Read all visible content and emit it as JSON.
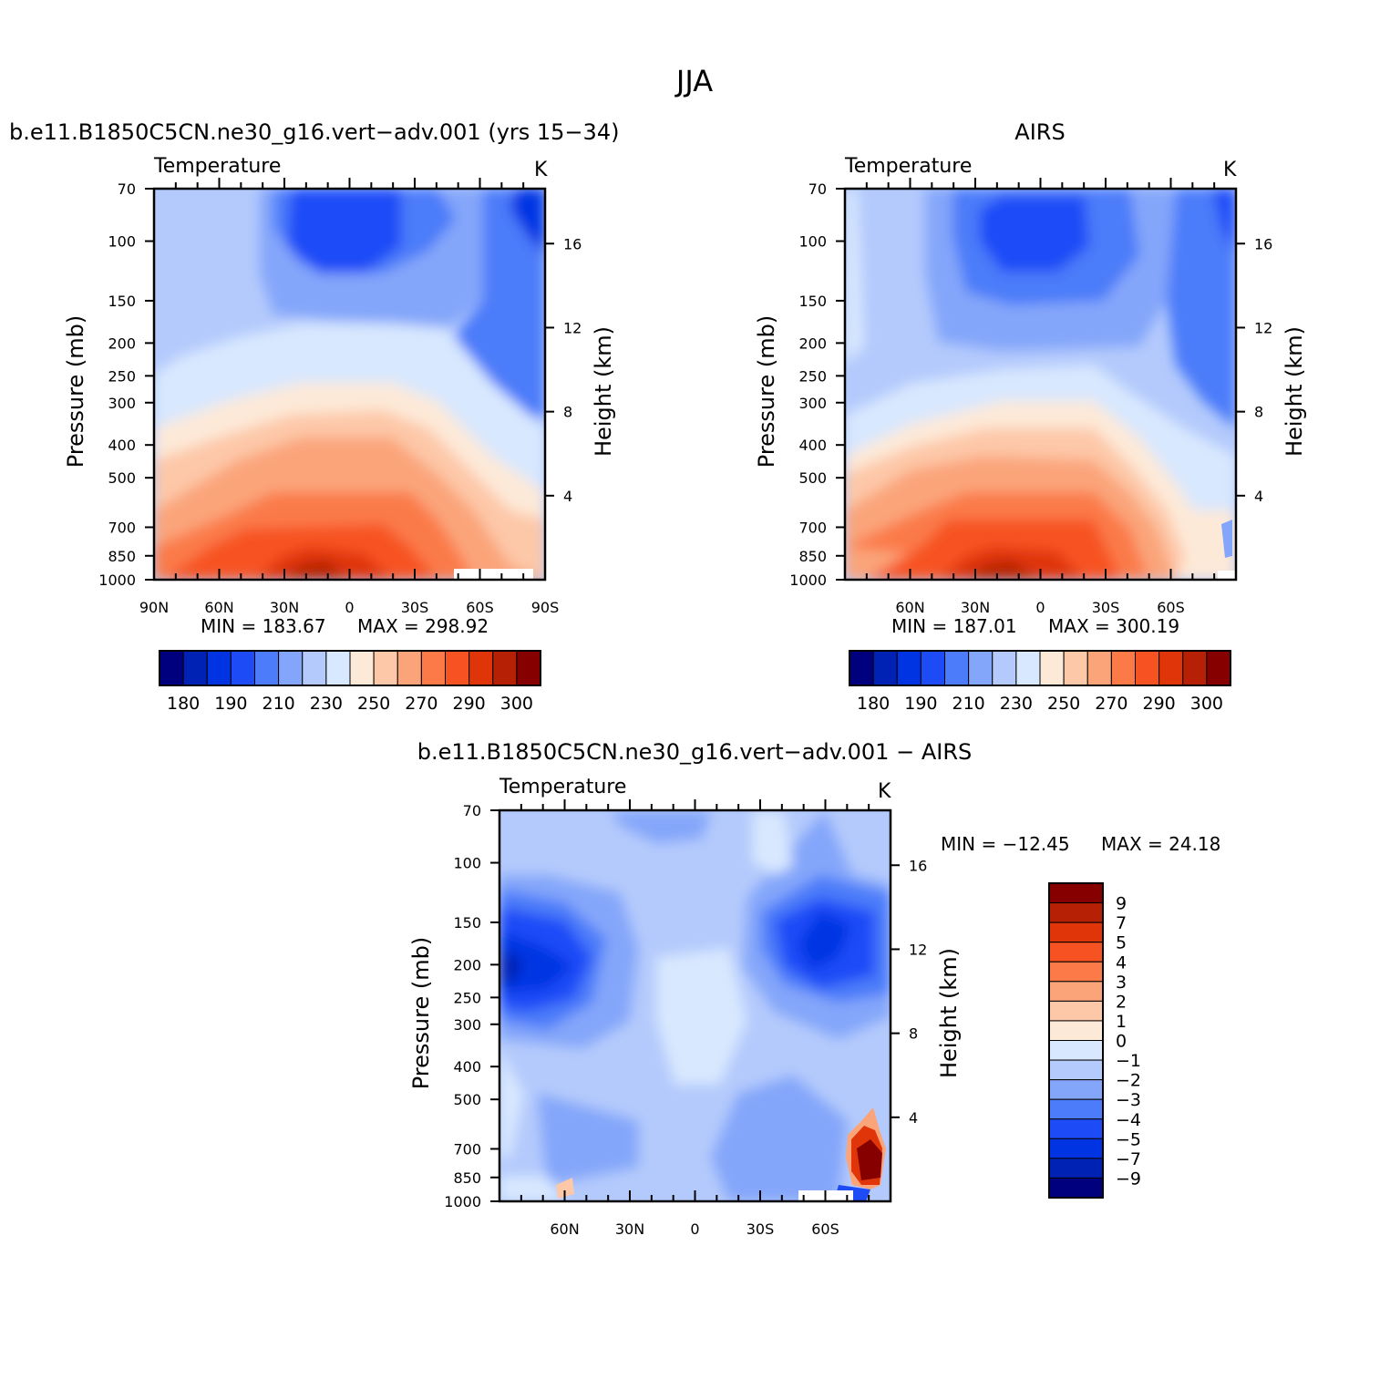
{
  "figure_title": "JJA",
  "chart_data": [
    {
      "type": "heatmap",
      "panel": "model",
      "title": "b.e11.B1850C5CN.ne30_g16.vert−adv.001 (yrs 15−34)",
      "variable": "Temperature",
      "units": "K",
      "xlabel": "",
      "ylabel": "Pressure (mb)",
      "ylabel_right": "Height (km)",
      "x_ticks": [
        "90N",
        "60N",
        "30N",
        "0",
        "30S",
        "60S",
        "90S"
      ],
      "y_ticks": [
        70,
        100,
        150,
        200,
        250,
        300,
        400,
        500,
        700,
        850,
        1000
      ],
      "height_ticks": [
        4,
        8,
        12,
        16
      ],
      "ylim": [
        1000,
        70
      ],
      "min_label": "MIN =  183.67",
      "max_label": "MAX =  298.92",
      "min": 183.67,
      "max": 298.92,
      "colorbar_labels": [
        "180",
        "190",
        "210",
        "230",
        "250",
        "270",
        "290",
        "300"
      ],
      "colorbar_levels": 16
    },
    {
      "type": "heatmap",
      "panel": "obs",
      "title": "AIRS",
      "variable": "Temperature",
      "units": "K",
      "xlabel": "",
      "ylabel": "Pressure (mb)",
      "ylabel_right": "Height (km)",
      "x_ticks": [
        "60N",
        "30N",
        "0",
        "30S",
        "60S"
      ],
      "y_ticks": [
        70,
        100,
        150,
        200,
        250,
        300,
        400,
        500,
        700,
        850,
        1000
      ],
      "height_ticks": [
        4,
        8,
        12,
        16
      ],
      "ylim": [
        1000,
        70
      ],
      "min_label": "MIN =  187.01",
      "max_label": "MAX =  300.19",
      "min": 187.01,
      "max": 300.19,
      "colorbar_labels": [
        "180",
        "190",
        "210",
        "230",
        "250",
        "270",
        "290",
        "300"
      ],
      "colorbar_levels": 16
    },
    {
      "type": "heatmap",
      "panel": "difference",
      "title": "b.e11.B1850C5CN.ne30_g16.vert−adv.001 − AIRS",
      "variable": "Temperature",
      "units": "K",
      "xlabel": "",
      "ylabel": "Pressure (mb)",
      "ylabel_right": "Height (km)",
      "x_ticks": [
        "60N",
        "30N",
        "0",
        "30S",
        "60S"
      ],
      "y_ticks": [
        70,
        100,
        150,
        200,
        250,
        300,
        400,
        500,
        700,
        850,
        1000
      ],
      "height_ticks": [
        4,
        8,
        12,
        16
      ],
      "ylim": [
        1000,
        70
      ],
      "min_label": "MIN = −12.45",
      "max_label": "MAX =   24.18",
      "min": -12.45,
      "max": 24.18,
      "colorbar_labels": [
        "9",
        "7",
        "5",
        "4",
        "3",
        "2",
        "1",
        "0",
        "−1",
        "−2",
        "−3",
        "−4",
        "−5",
        "−7",
        "−9"
      ],
      "colorbar_levels": 16
    }
  ],
  "palette": [
    "#00007f",
    "#0022b4",
    "#0034e3",
    "#1d4cf7",
    "#4c7cf9",
    "#84a6fa",
    "#b4cafc",
    "#d8e8fe",
    "#fde9d8",
    "#fdc8a8",
    "#fba47a",
    "#fb7a48",
    "#f75222",
    "#df3508",
    "#b62004",
    "#860000"
  ]
}
